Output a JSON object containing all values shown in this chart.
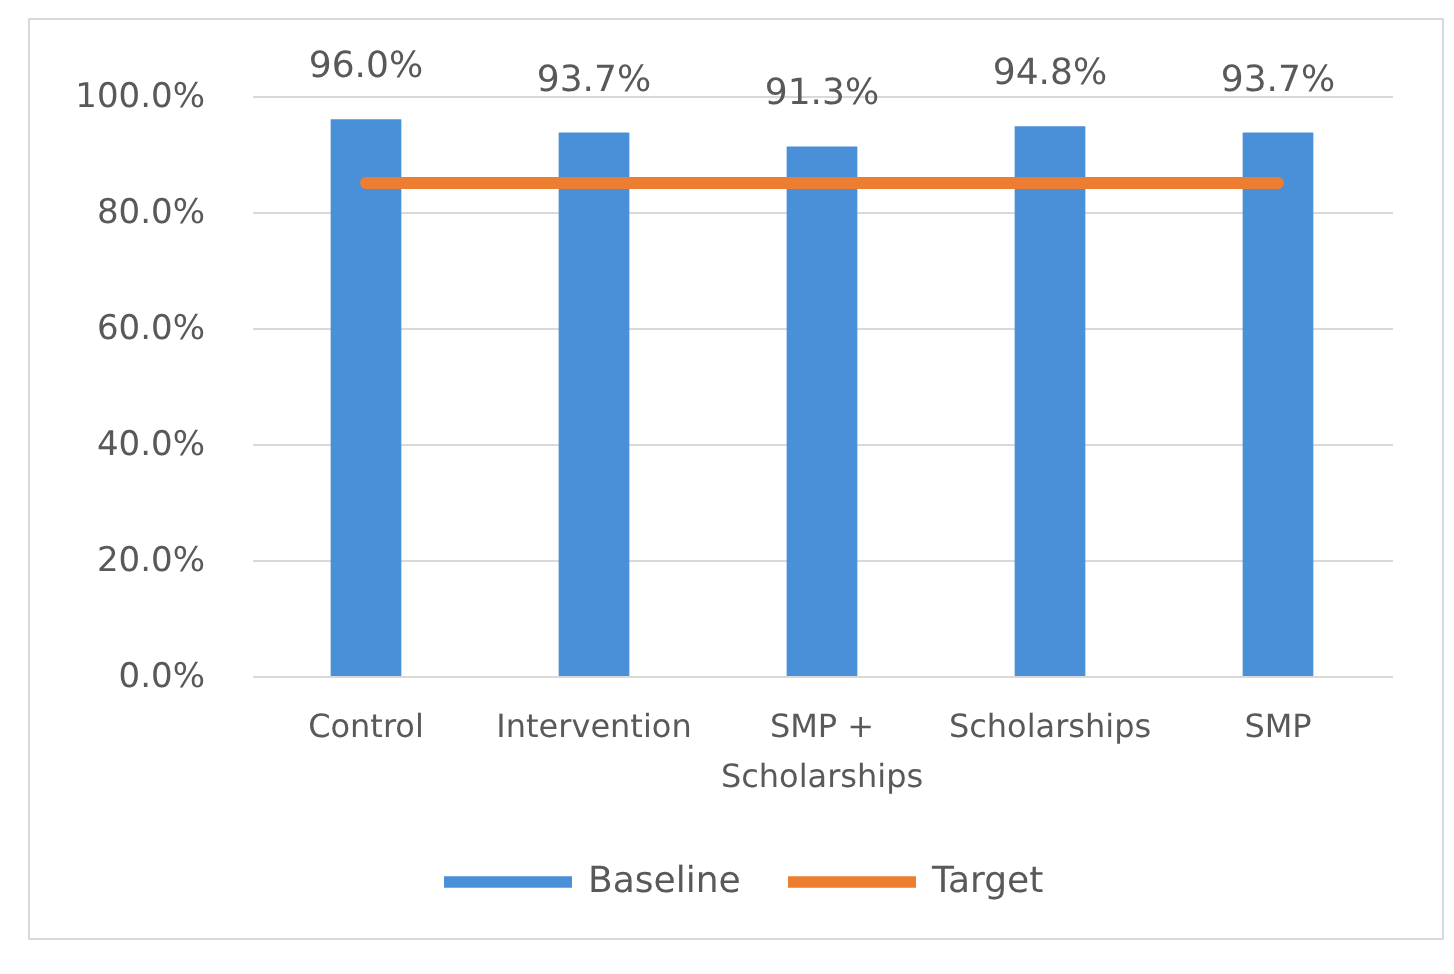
{
  "chart_data": {
    "type": "bar",
    "categories": [
      "Control",
      "Intervention",
      "SMP + Scholarships",
      "Scholarships",
      "SMP"
    ],
    "series": [
      {
        "name": "Baseline",
        "color": "#4a90d9",
        "values": [
          96.0,
          93.7,
          91.3,
          94.8,
          93.7
        ],
        "value_labels": [
          "96.0%",
          "93.7%",
          "91.3%",
          "94.8%",
          "93.7%"
        ]
      },
      {
        "name": "Target",
        "type": "line",
        "color": "#ed7d31",
        "values": [
          85,
          85,
          85,
          85,
          85
        ]
      }
    ],
    "ylim": [
      0,
      100
    ],
    "yticks": [
      {
        "value": 0,
        "label": "0.0%"
      },
      {
        "value": 20,
        "label": "20.0%"
      },
      {
        "value": 40,
        "label": "40.0%"
      },
      {
        "value": 60,
        "label": "60.0%"
      },
      {
        "value": 80,
        "label": "80.0%"
      },
      {
        "value": 100,
        "label": "100.0%"
      }
    ],
    "grid": "y",
    "legend": "bottom"
  }
}
